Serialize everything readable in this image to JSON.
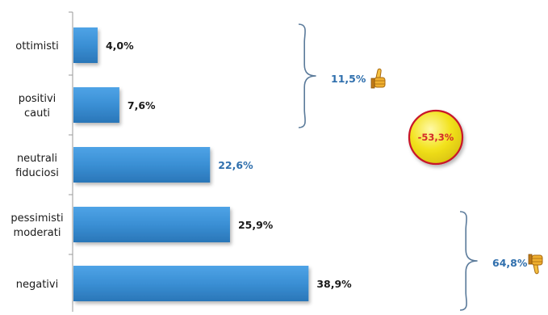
{
  "chart_data": {
    "type": "bar",
    "orientation": "horizontal",
    "categories": [
      [
        "ottimisti"
      ],
      [
        "positivi",
        "cauti"
      ],
      [
        "neutrali",
        "fiduciosi"
      ],
      [
        "pessimisti",
        "moderati"
      ],
      [
        "negativi"
      ]
    ],
    "values": [
      4.0,
      7.6,
      22.6,
      25.9,
      38.9
    ],
    "value_labels": [
      "4,0%",
      "7,6%",
      "22,6%",
      "25,9%",
      "38,9%"
    ],
    "value_label_colors": [
      "#1a1a1a",
      "#1a1a1a",
      "#2f6fad",
      "#1a1a1a",
      "#1a1a1a"
    ],
    "xlim": [
      0,
      45
    ],
    "grid": false,
    "bar_color": "#3a8fd4",
    "groups": [
      {
        "label": "11,5%",
        "from": 0,
        "to": 1,
        "icon": "thumbs-up-icon",
        "color": "#2f6fad"
      },
      {
        "label": "64,8%",
        "from": 3,
        "to": 4,
        "icon": "thumbs-down-icon",
        "color": "#2f6fad"
      }
    ],
    "difference_badge": {
      "label": "-53,3%",
      "color": "#d42a2a",
      "fill": "#f2e21c"
    }
  }
}
